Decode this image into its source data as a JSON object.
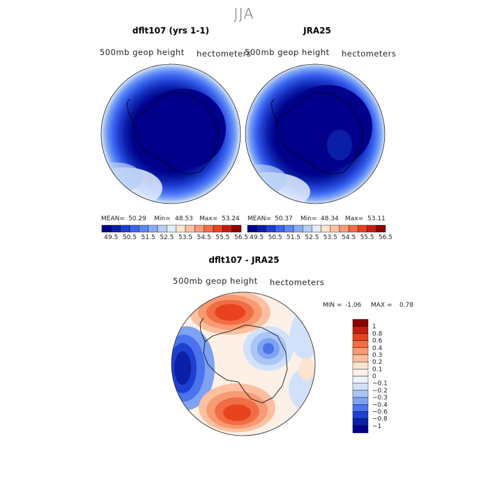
{
  "figure": {
    "title": "JJA"
  },
  "chart_data": [
    {
      "type": "heatmap",
      "title": "dflt107 (yrs 1-1)",
      "left_label": "500mb geop height",
      "right_label": "hectometers",
      "projection": "polar stereographic (south pole)",
      "stats": {
        "mean_label": "MEAN=",
        "mean": "50.29",
        "min_label": "Min=",
        "min": "48.53",
        "max_label": "Max=",
        "max": "53.24"
      },
      "levels": [
        "49.5",
        "50.5",
        "51.5",
        "52.5",
        "53.5",
        "54.5",
        "55.5",
        "56.5"
      ],
      "colors": [
        "#00008b",
        "#0a1fa8",
        "#1f3fd0",
        "#3a64f0",
        "#5d87f4",
        "#87acf5",
        "#b6cdf7",
        "#e2ecfb",
        "#fde4d0",
        "#fcc0a0",
        "#f89a72",
        "#f26d45",
        "#e8421e",
        "#c41f10",
        "#8b0000"
      ]
    },
    {
      "type": "heatmap",
      "title": "JRA25",
      "left_label": "500mb geop height",
      "right_label": "hectometers",
      "projection": "polar stereographic (south pole)",
      "stats": {
        "mean_label": "MEAN=",
        "mean": "50.37",
        "min_label": "Min=",
        "min": "48.34",
        "max_label": "Max=",
        "max": "53.11"
      },
      "levels": [
        "49.5",
        "50.5",
        "51.5",
        "52.5",
        "53.5",
        "54.5",
        "55.5",
        "56.5"
      ],
      "colors": [
        "#00008b",
        "#0a1fa8",
        "#1f3fd0",
        "#3a64f0",
        "#5d87f4",
        "#87acf5",
        "#b6cdf7",
        "#e2ecfb",
        "#fde4d0",
        "#fcc0a0",
        "#f89a72",
        "#f26d45",
        "#e8421e",
        "#c41f10",
        "#8b0000"
      ]
    },
    {
      "type": "heatmap",
      "title": "dflt107 - JRA25",
      "left_label": "500mb geop height",
      "right_label": "hectometers",
      "projection": "polar stereographic (south pole)",
      "stats": {
        "min_label": "MIN =",
        "min": "-1.06",
        "max_label": "MAX =",
        "max": "0.78"
      },
      "levels": [
        "1",
        "0.8",
        "0.6",
        "0.4",
        "0.3",
        "0.2",
        "0.1",
        "0",
        "-0.1",
        "-0.2",
        "-0.3",
        "-0.4",
        "-0.6",
        "-0.8",
        "-1"
      ],
      "colors": [
        "#8b0000",
        "#c41f10",
        "#e8421e",
        "#f26d45",
        "#f89a72",
        "#fcc0a0",
        "#fde4d0",
        "#fdf0e6",
        "#eef3fd",
        "#d2e1fb",
        "#aac6f7",
        "#7ea3f3",
        "#4a73ec",
        "#1f3fd0",
        "#0a1fa8",
        "#00008b"
      ]
    }
  ]
}
